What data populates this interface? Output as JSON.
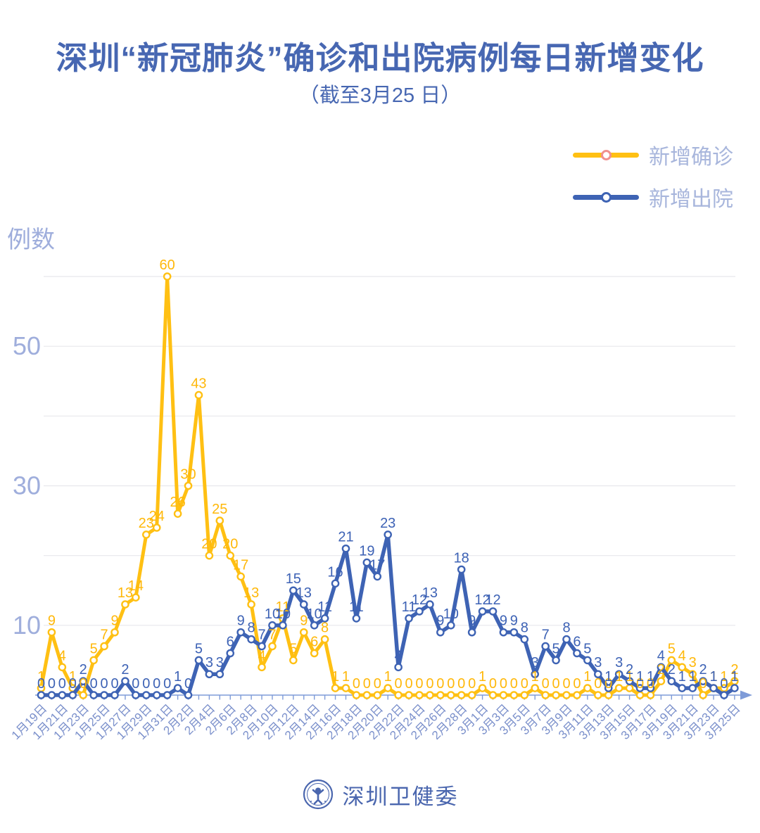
{
  "title": "深圳“新冠肺炎”确诊和出院病例每日新增变化",
  "subtitle": "（截至3月25 日）",
  "legend": {
    "confirmed": {
      "label": "新增确诊",
      "line_color": "#FFC013",
      "marker_ring": "#F0908D"
    },
    "discharged": {
      "label": "新增出院",
      "line_color": "#3E63B4",
      "marker_ring": "#3E63B4"
    }
  },
  "y_axis": {
    "title": "例数",
    "tick_labels": [
      10,
      30,
      50
    ]
  },
  "footer": {
    "org": "深圳卫健委",
    "logo": "shenzhen-health-commission-badge"
  },
  "colors": {
    "title": "#4767B2",
    "legend_text": "#A8B6DC",
    "y_tick_text": "#9FAEDC",
    "date_text": "#7B90CB",
    "axis": "#7E9BD8",
    "gridline": "#E7E7EC",
    "confirmed": "#FFC013",
    "confirmed_label": "#FFB80A",
    "discharged": "#3E63B4",
    "discharged_label": "#3D62B5"
  },
  "chart_data": {
    "type": "line",
    "title": "深圳“新冠肺炎”确诊和出院病例每日新增变化（截至3月25 日）",
    "ylabel": "例数",
    "ylim": [
      0,
      60
    ],
    "grid": "horizontal",
    "gridlines": [
      10,
      20,
      30,
      40,
      50,
      60
    ],
    "y_ticks_labeled": [
      10,
      30,
      50
    ],
    "legend_position": "top-right",
    "x_label_every": 2,
    "x": [
      "1月19日",
      "1月20日",
      "1月21日",
      "1月22日",
      "1月23日",
      "1月24日",
      "1月25日",
      "1月26日",
      "1月27日",
      "1月28日",
      "1月29日",
      "1月30日",
      "1月31日",
      "2月1日",
      "2月2日",
      "2月3日",
      "2月4日",
      "2月5日",
      "2月6日",
      "2月7日",
      "2月8日",
      "2月9日",
      "2月10日",
      "2月11日",
      "2月12日",
      "2月13日",
      "2月14日",
      "2月15日",
      "2月16日",
      "2月17日",
      "2月18日",
      "2月19日",
      "2月20日",
      "2月21日",
      "2月22日",
      "2月23日",
      "2月24日",
      "2月25日",
      "2月26日",
      "2月27日",
      "2月28日",
      "2月29日",
      "3月1日",
      "3月2日",
      "3月3日",
      "3月4日",
      "3月5日",
      "3月6日",
      "3月7日",
      "3月8日",
      "3月9日",
      "3月10日",
      "3月11日",
      "3月12日",
      "3月13日",
      "3月14日",
      "3月15日",
      "3月16日",
      "3月17日",
      "3月18日",
      "3月19日",
      "3月20日",
      "3月21日",
      "3月22日",
      "3月23日",
      "3月24日",
      "3月25日"
    ],
    "series": [
      {
        "name": "新增确诊",
        "color": "#FFC013",
        "values": [
          1,
          9,
          4,
          1,
          0,
          5,
          7,
          9,
          13,
          14,
          23,
          24,
          60,
          26,
          30,
          43,
          20,
          25,
          20,
          17,
          13,
          4,
          7,
          11,
          5,
          9,
          6,
          8,
          1,
          1,
          0,
          0,
          0,
          1,
          0,
          0,
          0,
          0,
          0,
          0,
          0,
          0,
          1,
          0,
          0,
          0,
          0,
          1,
          0,
          0,
          0,
          0,
          1,
          0,
          0,
          1,
          1,
          0,
          0,
          2,
          5,
          4,
          3,
          0,
          1,
          1,
          2
        ]
      },
      {
        "name": "新增出院",
        "color": "#3E63B4",
        "values": [
          0,
          0,
          0,
          0,
          2,
          0,
          0,
          0,
          2,
          0,
          0,
          0,
          0,
          1,
          0,
          5,
          3,
          3,
          6,
          9,
          8,
          7,
          10,
          10,
          15,
          13,
          10,
          11,
          16,
          21,
          11,
          19,
          17,
          23,
          4,
          11,
          12,
          13,
          9,
          10,
          18,
          9,
          12,
          12,
          9,
          9,
          8,
          3,
          7,
          5,
          8,
          6,
          5,
          3,
          1,
          3,
          2,
          1,
          1,
          4,
          2,
          1,
          1,
          2,
          1,
          0,
          1
        ]
      }
    ]
  }
}
